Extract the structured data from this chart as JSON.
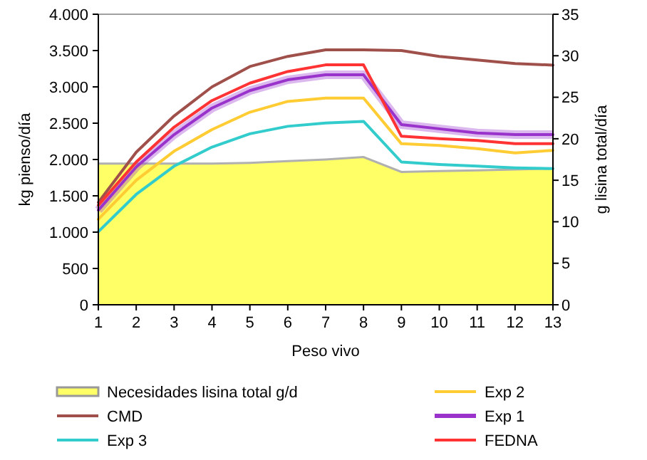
{
  "chart_data": {
    "type": "line",
    "xlabel": "Peso vivo",
    "ylabel": "kg pienso/día",
    "y2label": "g lisina total/día",
    "x": [
      1,
      2,
      3,
      4,
      5,
      6,
      7,
      8,
      9,
      10,
      11,
      12,
      13
    ],
    "xlim": [
      1,
      13
    ],
    "xticks": [
      1,
      2,
      3,
      4,
      5,
      6,
      7,
      8,
      9,
      10,
      11,
      12,
      13
    ],
    "ylim": [
      0,
      4000
    ],
    "yticks": [
      0,
      500,
      {
        "value": 1000,
        "label": "1.000"
      },
      {
        "value": 1500,
        "label": "1.500"
      },
      {
        "value": 2000,
        "label": "2.000"
      },
      {
        "value": 2500,
        "label": "2.500"
      },
      {
        "value": 3000,
        "label": "3.000"
      },
      {
        "value": 3500,
        "label": "3.500"
      },
      {
        "value": 4000,
        "label": "4.000"
      }
    ],
    "y2lim": [
      0,
      35
    ],
    "y2ticks": [
      0,
      5,
      10,
      15,
      20,
      25,
      30,
      35
    ],
    "legend": "bottom",
    "grid": false,
    "series": [
      {
        "name": "Necesidades lisina total g/d",
        "type": "area",
        "axis": "y2",
        "color": "#ffff66",
        "values": [
          17.0,
          17.0,
          17.0,
          17.0,
          17.1,
          17.3,
          17.5,
          17.8,
          16.0,
          16.1,
          16.2,
          16.3,
          16.4
        ]
      },
      {
        "name": "CMD",
        "color": "#a0504a",
        "values": [
          1410,
          2100,
          2600,
          3000,
          3280,
          3420,
          3510,
          3510,
          3500,
          3420,
          3370,
          3320,
          3300
        ]
      },
      {
        "name": "Exp 3",
        "axis": "y2",
        "color": "#33cccc",
        "values": [
          8.8,
          13.3,
          16.7,
          19.0,
          20.6,
          21.5,
          21.9,
          22.1,
          17.2,
          16.9,
          16.7,
          16.5,
          16.4
        ]
      },
      {
        "name": "Exp 2",
        "axis": "y2",
        "color": "#ffcc33",
        "values": [
          10.3,
          15.0,
          18.5,
          21.1,
          23.2,
          24.5,
          24.9,
          24.9,
          19.4,
          19.2,
          18.8,
          18.3,
          18.6
        ]
      },
      {
        "name": "Exp 1",
        "axis": "y2",
        "color": "#9933cc",
        "values": [
          11.4,
          16.6,
          20.5,
          23.7,
          25.8,
          27.1,
          27.7,
          27.7,
          21.7,
          21.2,
          20.7,
          20.5,
          20.5
        ]
      },
      {
        "name": "FEDNA",
        "axis": "y2",
        "color": "#ff3333",
        "values": [
          12.0,
          17.2,
          21.4,
          24.6,
          26.7,
          28.1,
          28.9,
          28.9,
          20.3,
          20.0,
          19.8,
          19.4,
          19.4
        ]
      }
    ]
  }
}
